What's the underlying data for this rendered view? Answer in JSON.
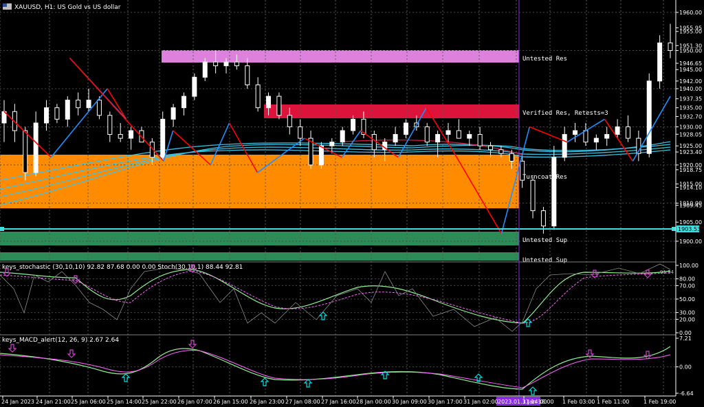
{
  "header": {
    "symbol_title": "XAUUSD, H1: US Gold vs US dollar"
  },
  "zones": {
    "untested_res": "Untested Res",
    "verified_res": "Verified Res, Retests=3",
    "turncoat_res": "Turncoat Res",
    "untested_sup_1": "Untested Sup",
    "untested_sup_2": "Untested Sup"
  },
  "price_axis": {
    "labels": [
      "1960.00",
      "1955.95",
      "1955.00",
      "1951.30",
      "1950.00",
      "1946.65",
      "1945.00",
      "1942.00",
      "1940.00",
      "1937.35",
      "1935.00",
      "1932.70",
      "1930.00",
      "1928.05",
      "1925.00",
      "1923.40",
      "1920.00",
      "1918.75",
      "1915.00",
      "1914.10",
      "1910.00",
      "1909.45",
      "1905.00",
      "1900.00"
    ],
    "current_price": "1903.53",
    "horizontal_line": "1903.53"
  },
  "stochastic": {
    "title": "keys_stochastic (30,10,10) 92.82 87.68 0.00 0.00 Stoch(30,10,1) 88.44 92.81",
    "axis_labels": [
      "100.00",
      "80.00",
      "70.00",
      "50.00",
      "30.00",
      "20.00",
      "0.00"
    ],
    "last_value": "91.94"
  },
  "macd": {
    "title": "keys_MACD_alert(12, 26, 9) 2.67 2.64",
    "axis_labels": [
      "7.21",
      "0.00",
      "-6.64"
    ]
  },
  "time_axis": {
    "labels": [
      "24 Jan 2023",
      "24 Jan 21:00",
      "25 Jan 06:00",
      "25 Jan 14:00",
      "25 Jan 22:00",
      "26 Jan 07:00",
      "26 Jan 15:00",
      "26 Jan 23:00",
      "27 Jan 08:00",
      "27 Jan 16:00",
      "28 Jan 00:00",
      "30 Jan 09:00",
      "30 Jan 17:00",
      "31 Jan 02:00",
      "1 Jan 18:00",
      "1 Feb 03:00",
      "1 Feb 11:00",
      "1 Feb 19:00"
    ],
    "cursor_label": "2023.01.31 14:00"
  },
  "colors": {
    "background": "#000000",
    "untested_res": "#dc82dc",
    "verified_res": "#dc143c",
    "turncoat_res": "#ff8c00",
    "untested_sup": "#2e8b57",
    "zigzag_up": "#1e90ff",
    "zigzag_down": "#ff0000",
    "ma_band": "#40c0e0",
    "stoch_main": "#90ee90",
    "stoch_signal": "#ff66ff",
    "arrow_up": "#00e0e0",
    "arrow_down": "#cc44cc",
    "cursor_line": "#8a2be2"
  },
  "candles": [
    [
      1931,
      1937,
      1926,
      1934
    ],
    [
      1934,
      1936,
      1926,
      1929
    ],
    [
      1929,
      1930,
      1916,
      1918
    ],
    [
      1918,
      1934,
      1917,
      1931
    ],
    [
      1931,
      1937,
      1929,
      1935
    ],
    [
      1935,
      1936,
      1931,
      1932
    ],
    [
      1932,
      1938,
      1930,
      1937
    ],
    [
      1937,
      1939,
      1933,
      1935
    ],
    [
      1935,
      1940,
      1934,
      1937
    ],
    [
      1937,
      1938,
      1932,
      1933
    ],
    [
      1933,
      1934,
      1926,
      1928
    ],
    [
      1928,
      1931,
      1926,
      1927
    ],
    [
      1927,
      1930,
      1924,
      1929
    ],
    [
      1929,
      1930,
      1926,
      1926
    ],
    [
      1926,
      1927,
      1920,
      1922
    ],
    [
      1922,
      1934,
      1921,
      1932
    ],
    [
      1932,
      1936,
      1930,
      1935
    ],
    [
      1935,
      1939,
      1933,
      1938
    ],
    [
      1938,
      1944,
      1937,
      1943
    ],
    [
      1943,
      1948,
      1942,
      1947
    ],
    [
      1947,
      1950,
      1944,
      1946
    ],
    [
      1946,
      1948,
      1944,
      1947
    ],
    [
      1947,
      1949,
      1945,
      1946
    ],
    [
      1946,
      1948,
      1940,
      1941
    ],
    [
      1941,
      1943,
      1934,
      1935
    ],
    [
      1935,
      1939,
      1933,
      1938
    ],
    [
      1938,
      1939,
      1932,
      1933
    ],
    [
      1933,
      1935,
      1928,
      1930
    ],
    [
      1930,
      1932,
      1925,
      1927
    ],
    [
      1927,
      1929,
      1919,
      1920
    ],
    [
      1920,
      1926,
      1919,
      1925
    ],
    [
      1925,
      1927,
      1923,
      1926
    ],
    [
      1926,
      1930,
      1925,
      1929
    ],
    [
      1929,
      1933,
      1928,
      1932
    ],
    [
      1932,
      1934,
      1927,
      1928
    ],
    [
      1928,
      1929,
      1922,
      1924
    ],
    [
      1924,
      1927,
      1921,
      1926
    ],
    [
      1926,
      1930,
      1925,
      1928
    ],
    [
      1928,
      1932,
      1927,
      1931
    ],
    [
      1931,
      1933,
      1929,
      1930
    ],
    [
      1930,
      1931,
      1925,
      1926
    ],
    [
      1926,
      1929,
      1922,
      1928
    ],
    [
      1928,
      1931,
      1926,
      1929
    ],
    [
      1929,
      1932,
      1927,
      1927
    ],
    [
      1927,
      1929,
      1925,
      1928
    ],
    [
      1928,
      1930,
      1924,
      1925
    ],
    [
      1925,
      1926,
      1922,
      1924
    ],
    [
      1924,
      1925,
      1922,
      1923
    ],
    [
      1923,
      1924,
      1919,
      1921
    ],
    [
      1921,
      1923,
      1914,
      1916
    ],
    [
      1916,
      1917,
      1906,
      1908
    ],
    [
      1908,
      1909,
      1902,
      1904
    ],
    [
      1904,
      1925,
      1903,
      1922
    ],
    [
      1922,
      1930,
      1921,
      1928
    ],
    [
      1928,
      1931,
      1926,
      1929
    ],
    [
      1929,
      1931,
      1925,
      1926
    ],
    [
      1926,
      1928,
      1924,
      1927
    ],
    [
      1927,
      1930,
      1925,
      1928
    ],
    [
      1928,
      1932,
      1927,
      1930
    ],
    [
      1930,
      1933,
      1926,
      1927
    ],
    [
      1927,
      1929,
      1921,
      1923
    ],
    [
      1923,
      1944,
      1922,
      1942
    ],
    [
      1942,
      1954,
      1940,
      1952
    ],
    [
      1952,
      1957,
      1948,
      1950
    ]
  ],
  "zigzag": [
    [
      1928,
      1934
    ],
    [
      1933,
      1922
    ],
    [
      1939,
      1940
    ],
    [
      1941,
      1932
    ],
    [
      1935,
      1948
    ],
    [
      1945,
      1921
    ],
    [
      1946,
      1929
    ],
    [
      1950,
      1920
    ],
    [
      1952,
      1931
    ],
    [
      1955,
      1918
    ],
    [
      1960,
      1927
    ],
    [
      1964,
      1922
    ],
    [
      1966,
      1929
    ],
    [
      1970,
      1922
    ],
    [
      1973,
      1935
    ],
    [
      1976,
      1923
    ],
    [
      1981,
      1902
    ],
    [
      1984,
      1930
    ],
    [
      1988,
      1926
    ],
    [
      1992,
      1932
    ],
    [
      1995,
      1921
    ],
    [
      1999,
      1938
    ]
  ]
}
